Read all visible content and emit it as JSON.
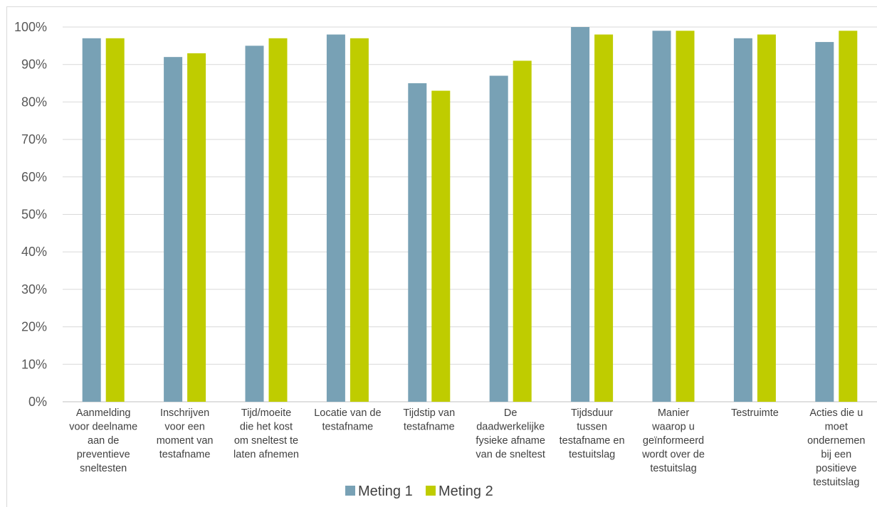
{
  "chart_data": {
    "type": "bar",
    "ylim": [
      0,
      100
    ],
    "yticks": [
      "0%",
      "10%",
      "20%",
      "30%",
      "40%",
      "50%",
      "60%",
      "70%",
      "80%",
      "90%",
      "100%"
    ],
    "grid": true,
    "legend_position": "bottom",
    "categories": [
      [
        "Aanmelding",
        "voor deelname",
        "aan de",
        "preventieve",
        "sneltesten"
      ],
      [
        "Inschrijven",
        "voor een",
        "moment van",
        "testafname"
      ],
      [
        "Tijd/moeite",
        "die het kost",
        "om sneltest te",
        "laten afnemen"
      ],
      [
        "Locatie van de",
        "testafname"
      ],
      [
        "Tijdstip van",
        "testafname"
      ],
      [
        "De",
        "daadwerkelijke",
        "fysieke afname",
        "van de sneltest"
      ],
      [
        "Tijdsduur",
        "tussen",
        "testafname en",
        "testuitslag"
      ],
      [
        "Manier",
        "waarop u",
        "geïnformeerd",
        "wordt over de",
        "testuitslag"
      ],
      [
        "Testruimte"
      ],
      [
        "Acties die u",
        "moet",
        "ondernemen",
        "bij een",
        "positieve",
        "testuitslag"
      ]
    ],
    "series": [
      {
        "name": "Meting 1",
        "color": "#78a1b5",
        "values": [
          97,
          92,
          95,
          98,
          85,
          87,
          100,
          99,
          97,
          96
        ]
      },
      {
        "name": "Meting 2",
        "color": "#bfcc00",
        "values": [
          97,
          93,
          97,
          97,
          83,
          91,
          98,
          99,
          98,
          99
        ]
      }
    ]
  }
}
